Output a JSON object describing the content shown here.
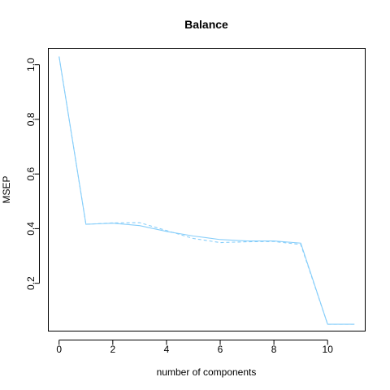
{
  "chart_data": {
    "type": "line",
    "title": "Balance",
    "xlabel": "number of components",
    "ylabel": "MSEP",
    "xlim": [
      -0.4,
      11.4
    ],
    "ylim": [
      0.025,
      1.06
    ],
    "xticks": [
      0,
      2,
      4,
      6,
      8,
      10
    ],
    "yticks": [
      0.2,
      0.4,
      0.6,
      0.8,
      1.0
    ],
    "ytick_labels": [
      "0.2",
      "0.4",
      "0.6",
      "0.8",
      "1.0"
    ],
    "grid": false,
    "legend": "none",
    "x": [
      0,
      1,
      2,
      3,
      4,
      5,
      6,
      7,
      8,
      9,
      10,
      11
    ],
    "series": [
      {
        "style": "solid",
        "color": "#87CEFA",
        "values": [
          1.03,
          0.416,
          0.42,
          0.411,
          0.39,
          0.373,
          0.36,
          0.355,
          0.355,
          0.347,
          0.05,
          0.05
        ]
      },
      {
        "style": "dashed",
        "color": "#87CEFA",
        "values": [
          1.03,
          0.416,
          0.421,
          0.422,
          0.393,
          0.364,
          0.349,
          0.352,
          0.353,
          0.342,
          0.05,
          0.05
        ]
      }
    ]
  }
}
